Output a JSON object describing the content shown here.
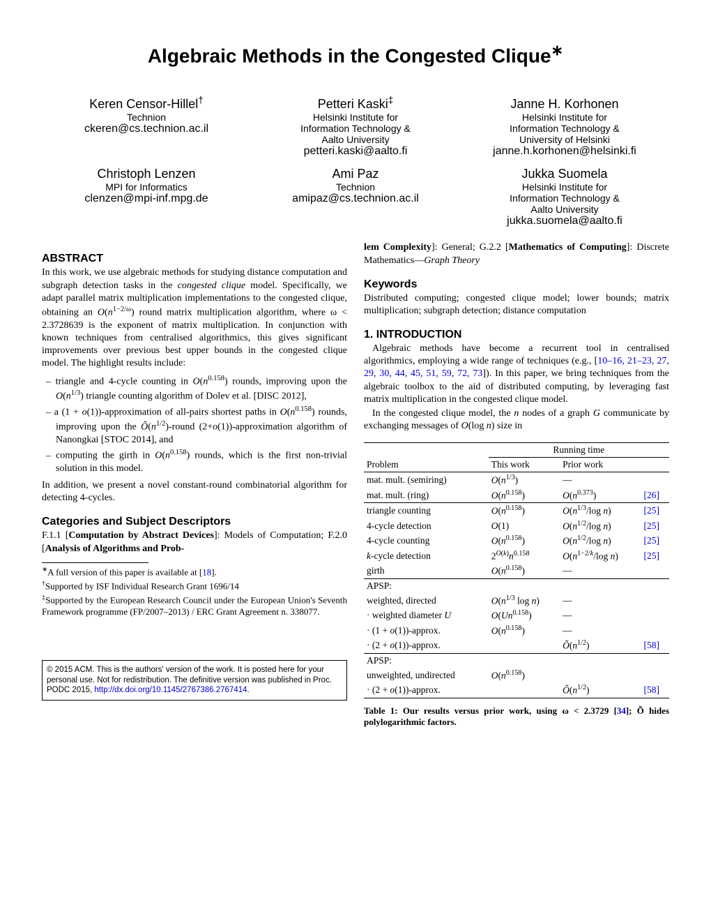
{
  "title": "Algebraic Methods in the Congested Clique",
  "title_sup": "∗",
  "authors_row1": [
    {
      "name": "Keren Censor-Hillel",
      "sup": "†",
      "affil": "Technion",
      "email": "ckeren@cs.technion.ac.il"
    },
    {
      "name": "Petteri Kaski",
      "sup": "‡",
      "affil": "Helsinki Institute for\nInformation Technology &\nAalto University",
      "email": "petteri.kaski@aalto.fi"
    },
    {
      "name": "Janne H. Korhonen",
      "sup": "",
      "affil": "Helsinki Institute for\nInformation Technology &\nUniversity of Helsinki",
      "email": "janne.h.korhonen@helsinki.fi"
    }
  ],
  "authors_row2": [
    {
      "name": "Christoph Lenzen",
      "sup": "",
      "affil": "MPI for Informatics",
      "email": "clenzen@mpi-inf.mpg.de"
    },
    {
      "name": "Ami Paz",
      "sup": "",
      "affil": "Technion",
      "email": "amipaz@cs.technion.ac.il"
    },
    {
      "name": "Jukka Suomela",
      "sup": "",
      "affil": "Helsinki Institute for\nInformation Technology &\nAalto University",
      "email": "jukka.suomela@aalto.fi"
    }
  ],
  "abstract_heading": "ABSTRACT",
  "abstract_p1": "In this work, we use algebraic methods for studying distance computation and subgraph detection tasks in the congested clique model. Specifically, we adapt parallel matrix multiplication implementations to the congested clique, obtaining an O(n^(1−2/ω)) round matrix multiplication algorithm, where ω < 2.3728639 is the exponent of matrix multiplication. In conjunction with known techniques from centralised algorithmics, this gives significant improvements over previous best upper bounds in the congested clique model. The highlight results include:",
  "bullets": [
    "triangle and 4-cycle counting in O(n^0.158) rounds, improving upon the O(n^(1/3)) triangle counting algorithm of Dolev et al. [DISC 2012],",
    "a (1 + o(1))-approximation of all-pairs shortest paths in O(n^0.158) rounds, improving upon the Õ(n^(1/2))-round (2+o(1))-approximation algorithm of Nanongkai [STOC 2014], and",
    "computing the girth in O(n^0.158) rounds, which is the first non-trivial solution in this model."
  ],
  "abstract_p2": "In addition, we present a novel constant-round combinatorial algorithm for detecting 4-cycles.",
  "categories_heading": "Categories and Subject Descriptors",
  "categories_left": "F.1.1 [Computation by Abstract Devices]: Models of Computation; F.2.0 [Analysis of Algorithms and Prob-",
  "categories_right": "lem Complexity]: General; G.2.2 [Mathematics of Computing]: Discrete Mathematics—Graph Theory",
  "keywords_heading": "Keywords",
  "keywords_text": "Distributed computing; congested clique model; lower bounds; matrix multiplication; subgraph detection; distance computation",
  "intro_heading": "1.   INTRODUCTION",
  "intro_p1a": "Algebraic methods have become a recurrent tool in centralised algorithmics, employing a wide range of techniques (e.g., [",
  "intro_cites": "10–16, 21–23, 27, 29, 30, 44, 45, 51, 59, 72, 73",
  "intro_p1b": "]). In this paper, we bring techniques from the algebraic toolbox to the aid of distributed computing, by leveraging fast matrix multiplication in the congested clique model.",
  "intro_p2": "In the congested clique model, the n nodes of a graph G communicate by exchanging messages of O(log n) size in",
  "footnote_star_a": "A full version of this paper is available at [",
  "footnote_star_cite": "18",
  "footnote_star_b": "].",
  "footnote_dagger": "Supported by ISF Individual Research Grant 1696/14",
  "footnote_ddagger": "Supported by the European Research Council under the European Union's Seventh Framework programme (FP/2007–2013) / ERC Grant Agreement n. 338077.",
  "copyright_a": "© 2015 ACM. This is the authors' version of the work. It is posted here for your personal use. Not for redistribution. The definitive version was published in Proc. PODC 2015, ",
  "copyright_link": "http://dx.doi.org/10.1145/2767386.2767414",
  "copyright_b": ".",
  "table": {
    "head_running": "Running time",
    "head_problem": "Problem",
    "head_this": "This work",
    "head_prior": "Prior work",
    "rows_g1": [
      {
        "p": "mat. mult. (semiring)",
        "t": "O(n^(1/3))",
        "pr": "—",
        "c": ""
      },
      {
        "p": "mat. mult. (ring)",
        "t": "O(n^0.158)",
        "pr": "O(n^0.373)",
        "c": "[26]"
      }
    ],
    "rows_g2": [
      {
        "p": "triangle counting",
        "t": "O(n^0.158)",
        "pr": "O(n^(1/3)/log n)",
        "c": "[25]"
      },
      {
        "p": "4-cycle detection",
        "t": "O(1)",
        "pr": "O(n^(1/2)/log n)",
        "c": "[25]"
      },
      {
        "p": "4-cycle counting",
        "t": "O(n^0.158)",
        "pr": "O(n^(1/2)/log n)",
        "c": "[25]"
      },
      {
        "p": "k-cycle detection",
        "t": "2^O(k) n^0.158",
        "pr": "O(n^(1−2/k)/log n)",
        "c": "[25]"
      },
      {
        "p": "girth",
        "t": "O(n^0.158)",
        "pr": "—",
        "c": ""
      }
    ],
    "g3_head": "APSP:",
    "rows_g3": [
      {
        "p": "weighted, directed",
        "t": "O(n^(1/3) log n)",
        "pr": "—",
        "c": ""
      },
      {
        "p": "· weighted diameter U",
        "t": "O(Un^0.158)",
        "pr": "—",
        "c": ""
      },
      {
        "p": "· (1 + o(1))-approx.",
        "t": "O(n^0.158)",
        "pr": "—",
        "c": ""
      },
      {
        "p": "· (2 + o(1))-approx.",
        "t": "",
        "pr": "Õ(n^(1/2))",
        "c": "[58]"
      }
    ],
    "g4_head": "APSP:",
    "rows_g4": [
      {
        "p": "unweighted, undirected",
        "t": "O(n^0.158)",
        "pr": "",
        "c": ""
      },
      {
        "p": "· (2 + o(1))-approx.",
        "t": "",
        "pr": "Õ(n^(1/2))",
        "c": "[58]"
      }
    ]
  },
  "caption_a": "Table 1: Our results versus prior work, using ω < 2.3729 [",
  "caption_cite": "34",
  "caption_b": "]; Õ hides polylogarithmic factors."
}
